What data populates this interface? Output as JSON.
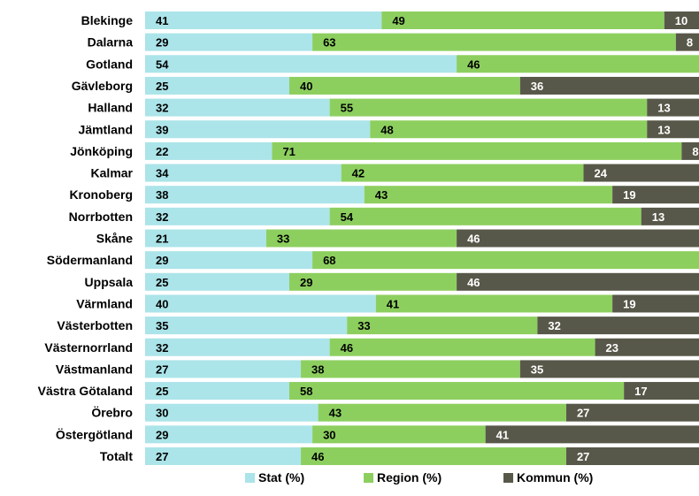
{
  "chart_data": {
    "type": "bar",
    "orientation": "horizontal",
    "stacked": "percent",
    "title": "",
    "xlabel": "",
    "ylabel": "",
    "categories": [
      "Blekinge",
      "Dalarna",
      "Gotland",
      "Gävleborg",
      "Halland",
      "Jämtland",
      "Jönköping",
      "Kalmar",
      "Kronoberg",
      "Norrbotten",
      "Skåne",
      "Södermanland",
      "Uppsala",
      "Värmland",
      "Västerbotten",
      "Västernorrland",
      "Västmanland",
      "Västra Götaland",
      "Örebro",
      "Östergötland",
      "Totalt"
    ],
    "series": [
      {
        "name": "Stat (%)",
        "color": "#ABE4E9",
        "label_color": "#000000",
        "values": [
          41,
          29,
          54,
          25,
          32,
          39,
          22,
          34,
          38,
          32,
          21,
          29,
          25,
          40,
          35,
          32,
          27,
          25,
          30,
          29,
          27
        ]
      },
      {
        "name": "Region (%)",
        "color": "#8DCF5F",
        "label_color": "#000000",
        "values": [
          49,
          63,
          46,
          40,
          55,
          48,
          71,
          42,
          43,
          54,
          33,
          68,
          29,
          41,
          33,
          46,
          38,
          58,
          43,
          30,
          46
        ]
      },
      {
        "name": "Kommun (%)",
        "color": "#58584A",
        "label_color": "#FFFFFF",
        "values": [
          10,
          8,
          0,
          36,
          13,
          13,
          8,
          24,
          19,
          13,
          46,
          3,
          46,
          19,
          32,
          23,
          35,
          17,
          27,
          41,
          27
        ]
      }
    ],
    "legend_position": "bottom",
    "grid": false
  }
}
